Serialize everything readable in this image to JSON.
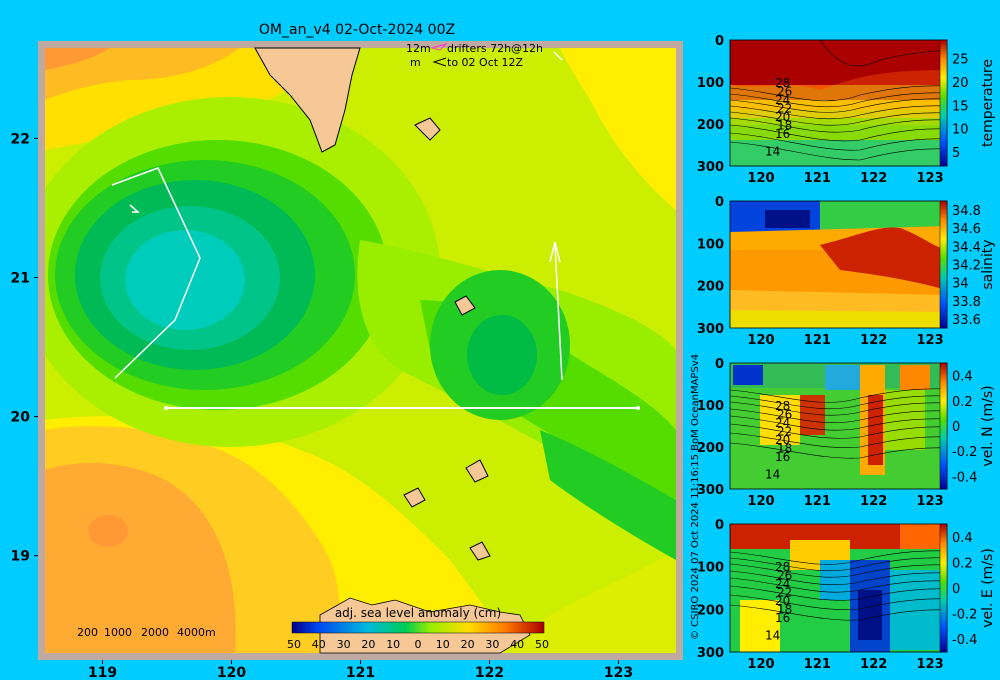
{
  "title": "OM_an_v4  02-Oct-2024 00Z",
  "drifter_legend": {
    "line1": "12m",
    "line1b": "drifters 72h@12h",
    "line2": "m",
    "line2b": "to 02 Oct 12Z"
  },
  "depth_legend": [
    "200",
    "1000",
    "2000",
    "4000m"
  ],
  "colorbar": {
    "label": "adj. sea level anomaly (cm)",
    "ticks": [
      "50",
      "40",
      "30",
      "20",
      "10",
      "0",
      "10",
      "20",
      "30",
      "40",
      "50"
    ]
  },
  "credit": "© CSIRO 2024   07 Oct 2024 11:16:15 BoM OceanMAPSv4",
  "colors": {
    "background": "#00ccff",
    "land": "#f5c895",
    "frame": "#c0a9a0"
  },
  "chart_data": [
    {
      "type": "heatmap",
      "title": "OM_an_v4  02-Oct-2024 00Z",
      "x_ticks": [
        "119",
        "120",
        "121",
        "122",
        "123"
      ],
      "y_ticks": [
        "22",
        "21",
        "20",
        "19"
      ],
      "xlim": [
        118.5,
        123.5
      ],
      "ylim": [
        18.25,
        22.7
      ],
      "colorbar_label": "adj. sea level anomaly (cm)",
      "colorbar_range": [
        -50,
        50
      ],
      "features": [
        {
          "kind": "low_anomaly_eddy",
          "center": [
            119.9,
            20.9
          ],
          "min_value": -15
        },
        {
          "kind": "low_anomaly_eddy",
          "center": [
            122.1,
            20.3
          ],
          "min_value": 0
        },
        {
          "kind": "high_anomaly",
          "center": [
            118.9,
            19.1
          ],
          "max_value": 40
        }
      ],
      "section_line": {
        "lat": 20.0,
        "lon_start": 119.5,
        "lon_end": 123.25
      }
    },
    {
      "type": "heatmap",
      "panel": "temperature",
      "ylabel": "temperature",
      "x_ticks": [
        "120",
        "121",
        "122",
        "123"
      ],
      "y_ticks": [
        "0",
        "100",
        "200",
        "300"
      ],
      "colorbar_ticks": [
        "25",
        "20",
        "15",
        "10",
        "5"
      ],
      "colorbar_range": [
        2,
        29
      ],
      "contour_labels": [
        "28",
        "26",
        "24",
        "22",
        "20",
        "18",
        "16",
        "14"
      ]
    },
    {
      "type": "heatmap",
      "panel": "salinity",
      "ylabel": "salinity",
      "x_ticks": [
        "120",
        "121",
        "122",
        "123"
      ],
      "y_ticks": [
        "0",
        "100",
        "200",
        "300"
      ],
      "colorbar_ticks": [
        "34.8",
        "34.6",
        "34.4",
        "34.2",
        "34",
        "33.8",
        "33.6"
      ],
      "colorbar_range": [
        33.5,
        34.9
      ]
    },
    {
      "type": "heatmap",
      "panel": "vel_N",
      "ylabel": "vel. N (m/s)",
      "x_ticks": [
        "120",
        "121",
        "122",
        "123"
      ],
      "y_ticks": [
        "0",
        "100",
        "200",
        "300"
      ],
      "colorbar_ticks": [
        "0.4",
        "0.2",
        "0",
        "-0.2",
        "-0.4"
      ],
      "colorbar_range": [
        -0.5,
        0.5
      ],
      "contour_labels": [
        "28",
        "26",
        "24",
        "22",
        "20",
        "18",
        "16",
        "14"
      ]
    },
    {
      "type": "heatmap",
      "panel": "vel_E",
      "ylabel": "vel. E (m/s)",
      "x_ticks": [
        "120",
        "121",
        "122",
        "123"
      ],
      "y_ticks": [
        "0",
        "100",
        "200",
        "300"
      ],
      "colorbar_ticks": [
        "0.4",
        "0.2",
        "0",
        "-0.2",
        "-0.4"
      ],
      "colorbar_range": [
        -0.5,
        0.5
      ],
      "contour_labels": [
        "28",
        "26",
        "24",
        "22",
        "20",
        "18",
        "16",
        "14"
      ]
    }
  ]
}
